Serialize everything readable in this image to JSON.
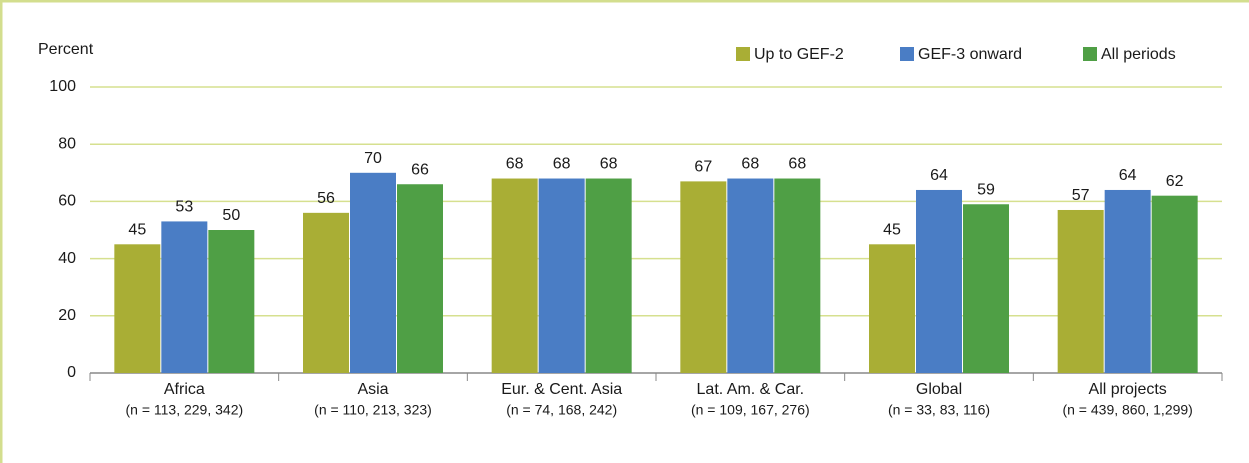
{
  "chart_data": {
    "type": "bar",
    "y_label": "Percent",
    "categories": [
      "Africa",
      "Asia",
      "Eur. & Cent. Asia",
      "Lat. Am. & Car.",
      "Global",
      "All projects"
    ],
    "category_sublabels": [
      "(n = 113, 229, 342)",
      "(n = 110, 213, 323)",
      "(n = 74, 168, 242)",
      "(n = 109, 167, 276)",
      "(n = 33, 83, 116)",
      "(n = 439, 860, 1,299)"
    ],
    "series": [
      {
        "name": "Up to GEF-2",
        "color": "#a9ae35",
        "values": [
          45,
          56,
          68,
          67,
          45,
          57
        ]
      },
      {
        "name": "GEF-3 onward",
        "color": "#4a7dc5",
        "values": [
          53,
          70,
          68,
          68,
          64,
          64
        ]
      },
      {
        "name": "All periods",
        "color": "#4f9f45",
        "values": [
          50,
          66,
          68,
          68,
          59,
          62
        ]
      }
    ],
    "ylim": [
      0,
      100
    ],
    "yticks": [
      0,
      20,
      40,
      60,
      80,
      100
    ],
    "grid": true,
    "legend": "top-right"
  }
}
